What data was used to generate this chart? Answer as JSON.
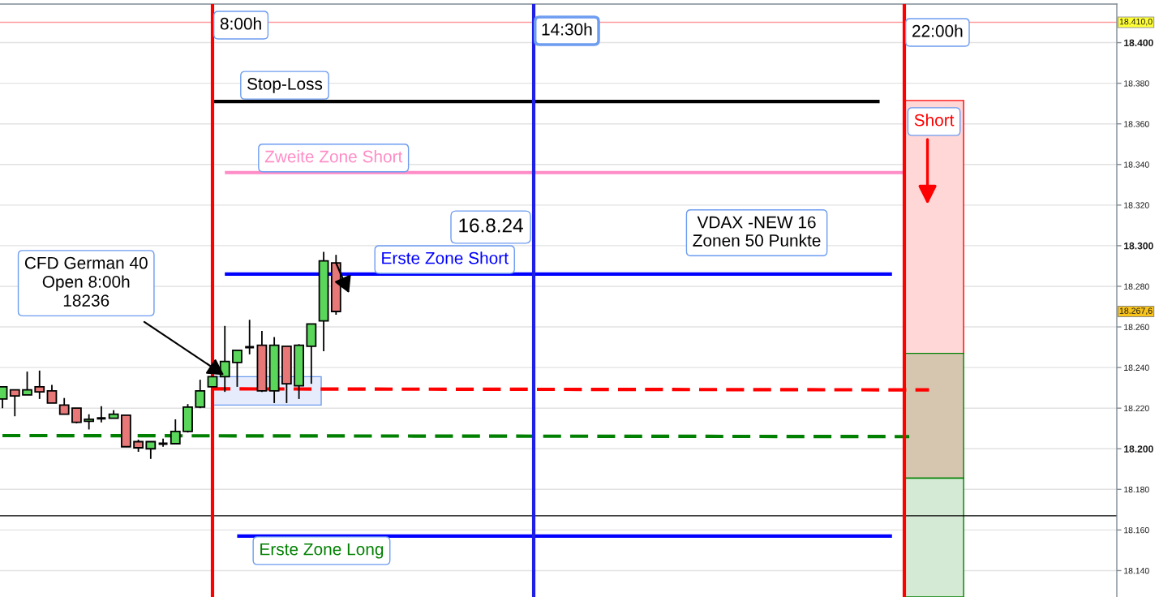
{
  "chart_data": {
    "type": "candlestick",
    "x": [
      3.75,
      4,
      4.25,
      4.5,
      4.75,
      5,
      5.25,
      5.5,
      5.75,
      6,
      6.25,
      6.5,
      6.75,
      7,
      7.25,
      7.5,
      7.75,
      8,
      8.25,
      8.5,
      8.75,
      9,
      9.25,
      9.5,
      9.75,
      10,
      10.25,
      10.5
    ],
    "ohlc": [
      [
        18224.5,
        18230.5,
        18220,
        18230.5
      ],
      [
        18229,
        18229,
        18216,
        18226
      ],
      [
        18226.5,
        18238,
        18226.5,
        18229
      ],
      [
        18230.5,
        18238.5,
        18224.5,
        18228
      ],
      [
        18228.5,
        18231.5,
        18222.5,
        18222.5
      ],
      [
        18221.5,
        18225,
        18217,
        18217
      ],
      [
        18220,
        18220,
        18212.5,
        18213
      ],
      [
        18213.5,
        18217,
        18209.5,
        18214.5
      ],
      [
        18215,
        18221,
        18213,
        18215
      ],
      [
        18215,
        18219,
        18215,
        18217
      ],
      [
        18216.5,
        18216.5,
        18201,
        18201
      ],
      [
        18203.5,
        18204.5,
        18198.5,
        18200.5
      ],
      [
        18200,
        18203.5,
        18195,
        18203.5
      ],
      [
        18202.5,
        18205,
        18201,
        18202.5
      ],
      [
        18202.5,
        18214.5,
        18202.5,
        18208.5
      ],
      [
        18208.5,
        18222,
        18208,
        18220.5
      ],
      [
        18220.5,
        18234,
        18220,
        18228.5
      ],
      [
        18230.5,
        18235.5,
        18230.5,
        18235.5
      ],
      [
        18235.5,
        18260.5,
        18228,
        18243
      ],
      [
        18242.5,
        18248.5,
        18230.5,
        18248.5
      ],
      [
        18250,
        18263.5,
        18246.5,
        18250
      ],
      [
        18251,
        18258,
        18228,
        18228.5
      ],
      [
        18228.5,
        18255,
        18222.5,
        18251
      ],
      [
        18250.5,
        18250.5,
        18222.5,
        18232
      ],
      [
        18231,
        18251.5,
        18224.5,
        18251
      ],
      [
        18250.5,
        18261.5,
        18232,
        18261.5
      ],
      [
        18263,
        18297,
        18248,
        18292.5
      ],
      [
        18291.5,
        18295.5,
        18266,
        18267.6
      ]
    ],
    "colors": [
      "#5ad65a",
      "#e87878",
      "#5ad65a",
      "#e87878",
      "#e87878",
      "#e87878",
      "#e87878",
      "#5ad65a",
      "#000000",
      "#5ad65a",
      "#e87878",
      "#e87878",
      "#5ad65a",
      "#000000",
      "#5ad65a",
      "#5ad65a",
      "#5ad65a",
      "#5ad65a",
      "#5ad65a",
      "#5ad65a",
      "#000000",
      "#e87878",
      "#5ad65a",
      "#e87878",
      "#5ad65a",
      "#5ad65a",
      "#5ad65a",
      "#e87878"
    ],
    "xlim": [
      3.7,
      26.3
    ],
    "ylim": [
      18127,
      18419
    ],
    "yticks": [
      {
        "value": 18140,
        "label": "18.140"
      },
      {
        "value": 18160,
        "label": "18.160"
      },
      {
        "value": 18180,
        "label": "18.180"
      },
      {
        "value": 18200,
        "label": "18.200"
      },
      {
        "value": 18220,
        "label": "18.220"
      },
      {
        "value": 18240,
        "label": "18.240"
      },
      {
        "value": 18260,
        "label": "18.260"
      },
      {
        "value": 18280,
        "label": "18.280"
      },
      {
        "value": 18300,
        "label": "18.300"
      },
      {
        "value": 18320,
        "label": "18.320"
      },
      {
        "value": 18340,
        "label": "18.340"
      },
      {
        "value": 18360,
        "label": "18.360"
      },
      {
        "value": 18380,
        "label": "18.380"
      },
      {
        "value": 18400,
        "label": "18.400"
      }
    ],
    "tick_labels": "y",
    "grid": "y",
    "series": [
      {
        "type": "bar",
        "x": [
          9.1
        ],
        "base": [
          18221.5
        ],
        "values": [
          14
        ],
        "color": "#e6ecfb"
      },
      {
        "type": "bar",
        "name": "Short",
        "x": [
          22.6
        ],
        "base": [
          18247
        ],
        "values": [
          124.5
        ],
        "color": "#ffd7d7"
      },
      {
        "type": "bar",
        "x": [
          22.6
        ],
        "base": [
          18185.5
        ],
        "values": [
          61.5
        ],
        "color": "#d6c6b0"
      },
      {
        "type": "bar",
        "x": [
          22.6
        ],
        "base": [
          18127
        ],
        "values": [
          58.5
        ],
        "color": "#d5ead5"
      },
      {
        "type": "line",
        "name": "Stop-Loss",
        "color": "#000000",
        "x": [
          8,
          21.5
        ],
        "values": [
          18371,
          18371
        ]
      },
      {
        "type": "line",
        "name": "Zweite Zone Short",
        "color": "#ff8cc6",
        "x": [
          8.25,
          22
        ],
        "values": [
          18336,
          18336
        ]
      },
      {
        "type": "line",
        "name": "Erste Zone Short",
        "color": "#0000ff",
        "x": [
          8.25,
          21.75
        ],
        "values": [
          18286,
          18286
        ]
      },
      {
        "type": "line",
        "color": "#ff0000",
        "line_style": "dashed",
        "x": [
          8,
          22.5
        ],
        "values": [
          18229.5,
          18229
        ]
      },
      {
        "type": "line",
        "color": "#008000",
        "line_style": "dashed",
        "x": [
          3.75,
          22.1
        ],
        "values": [
          18206.5,
          18206
        ]
      },
      {
        "type": "line",
        "name": "Erste Zone Long",
        "color": "#0000ff",
        "x": [
          8.5,
          21.75
        ],
        "values": [
          18157,
          18157
        ]
      }
    ],
    "ref_lines": [
      {
        "axis": "x",
        "value": 8,
        "label": "8:00h",
        "color": "#ff0000"
      },
      {
        "axis": "x",
        "value": 14.5,
        "label": "14:30h",
        "color": "#1f1fe6"
      },
      {
        "axis": "x",
        "value": 22,
        "label": "22:00h",
        "color": "#ff0000"
      },
      {
        "axis": "y",
        "value": 18410,
        "label": "18.410,0",
        "color": "#ff9a9a"
      },
      {
        "axis": "y",
        "value": 18167,
        "color": "#000000"
      }
    ],
    "annotations": [
      {
        "text": "CFD German 40\nOpen 8:00h\n18236",
        "x": 8.25,
        "y": 18236
      },
      "16.8.24",
      "VDAX -NEW 16\nZonen 50 Punkte",
      "18.267,6"
    ]
  }
}
